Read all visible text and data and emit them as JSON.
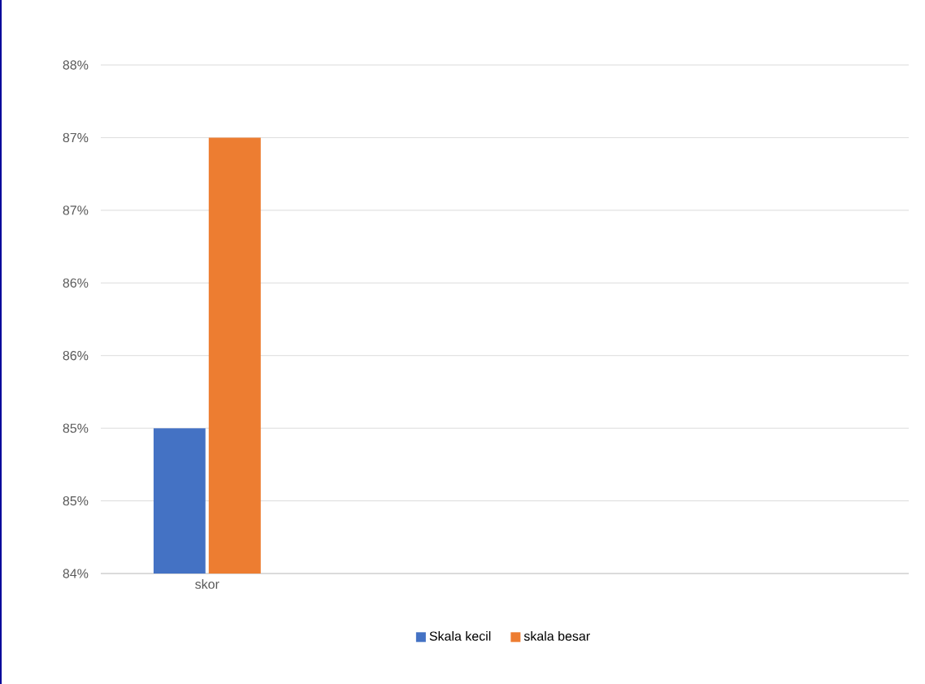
{
  "chart_data": {
    "type": "bar",
    "categories": [
      "skor"
    ],
    "series": [
      {
        "name": "Skala kecil",
        "color": "#4472c4",
        "values": [
          85
        ]
      },
      {
        "name": "skala besar",
        "color": "#ed7d31",
        "values": [
          87
        ]
      }
    ],
    "ylim": [
      84,
      87.5
    ],
    "yticks": [
      {
        "value": 84,
        "label": "84%"
      },
      {
        "value": 84.5,
        "label": "85%"
      },
      {
        "value": 85,
        "label": "85%"
      },
      {
        "value": 85.5,
        "label": "86%"
      },
      {
        "value": 86,
        "label": "86%"
      },
      {
        "value": 86.5,
        "label": "87%"
      },
      {
        "value": 87,
        "label": "87%"
      },
      {
        "value": 87.5,
        "label": "88%"
      }
    ],
    "grid": "y",
    "legend": "bottom"
  }
}
